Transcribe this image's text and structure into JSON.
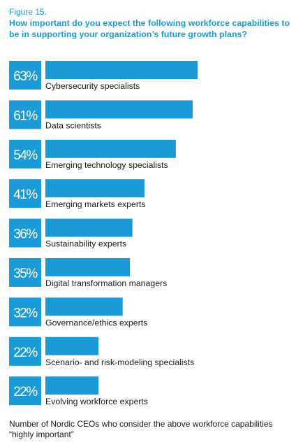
{
  "figure_label": "Figure 15.",
  "title": "How important do you expect the following workforce capabilities to be in supporting your organization’s future growth plans?",
  "footnote": "Number of Nordic CEOs who consider the above workforce capabilities “highly important”",
  "colors": {
    "accent": "#1a9bd7",
    "text": "#1a1a1a"
  },
  "chart_data": {
    "type": "bar",
    "orientation": "horizontal",
    "unit": "%",
    "categories": [
      "Cybersecurity specialists",
      "Data scientists",
      "Emerging technology specialists",
      "Emerging markets experts",
      "Sustainability experts",
      "Digital transformation managers",
      "Governance/ethics experts",
      "Scenario- and risk-modeling specialists",
      "Evolving workforce experts"
    ],
    "value_labels": [
      "63%",
      "61%",
      "54%",
      "41%",
      "36%",
      "35%",
      "32%",
      "22%",
      "22%"
    ],
    "values": [
      63,
      61,
      54,
      41,
      36,
      35,
      32,
      22,
      22
    ],
    "xlim": [
      0,
      100
    ],
    "grid": false,
    "legend": "none"
  }
}
